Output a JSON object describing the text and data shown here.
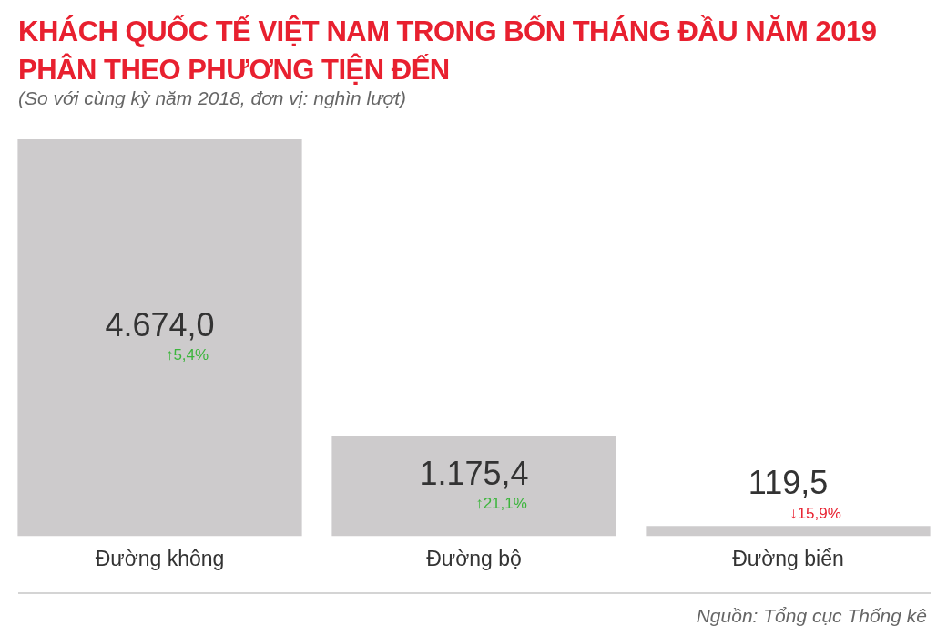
{
  "chart_data": {
    "type": "bar",
    "title": "KHÁCH QUỐC TẾ VIỆT NAM TRONG BỐN THÁNG ĐẦU NĂM 2019\nPHÂN THEO PHƯƠNG TIỆN ĐẾN",
    "subtitle": "(So với cùng kỳ năm 2018, đơn vị: nghìn lượt)",
    "categories": [
      "Đường không",
      "Đường bộ",
      "Đường biển"
    ],
    "values": [
      4674.0,
      1175.4,
      119.5
    ],
    "value_labels": [
      "4.674,0",
      "1.175,4",
      "119,5"
    ],
    "color": "#cdcbcc",
    "ylim": [
      0,
      4674
    ],
    "tick_labels": "x",
    "legend": false,
    "annotations": [
      "↑5,4%",
      "↑21,1%",
      "↓15,9%",
      "Nguồn: Tổng cục Thống kê"
    ]
  }
}
